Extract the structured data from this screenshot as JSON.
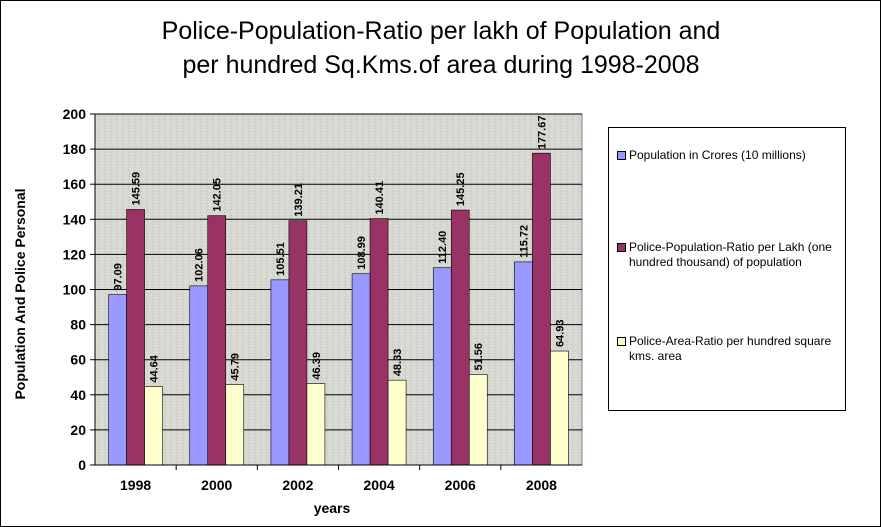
{
  "chart_data": {
    "type": "bar",
    "title_line1": "Police-Population-Ratio per lakh of Population and",
    "title_line2": "per hundred Sq.Kms.of area during 1998-2008",
    "xlabel": "years",
    "ylabel": "Population And Police Personal",
    "ylim": [
      0,
      200
    ],
    "ytick_step": 20,
    "categories": [
      "1998",
      "2000",
      "2002",
      "2004",
      "2006",
      "2008"
    ],
    "series": [
      {
        "name": "Population in Crores (10 millions)",
        "color": "#9999ff",
        "values": [
          97.09,
          102.06,
          105.51,
          108.99,
          112.4,
          115.72
        ],
        "labels": [
          "97.09",
          "102.06",
          "105.51",
          "108.99",
          "112.40",
          "115.72"
        ]
      },
      {
        "name": "Police-Population-Ratio per Lakh (one hundred thousand) of population",
        "color": "#993366",
        "values": [
          145.59,
          142.05,
          139.21,
          140.41,
          145.25,
          177.67
        ],
        "labels": [
          "145.59",
          "142.05",
          "139.21",
          "140.41",
          "145.25",
          "177.67"
        ]
      },
      {
        "name": "Police-Area-Ratio per hundred square kms. area",
        "color": "#ffffcc",
        "values": [
          44.64,
          45.79,
          46.39,
          48.33,
          51.56,
          64.93
        ],
        "labels": [
          "44.64",
          "45.79",
          "46.39",
          "48.33",
          "51.56",
          "64.93"
        ]
      }
    ],
    "grid": true,
    "legend_position": "right",
    "plot_background": "#d8d8d2"
  }
}
